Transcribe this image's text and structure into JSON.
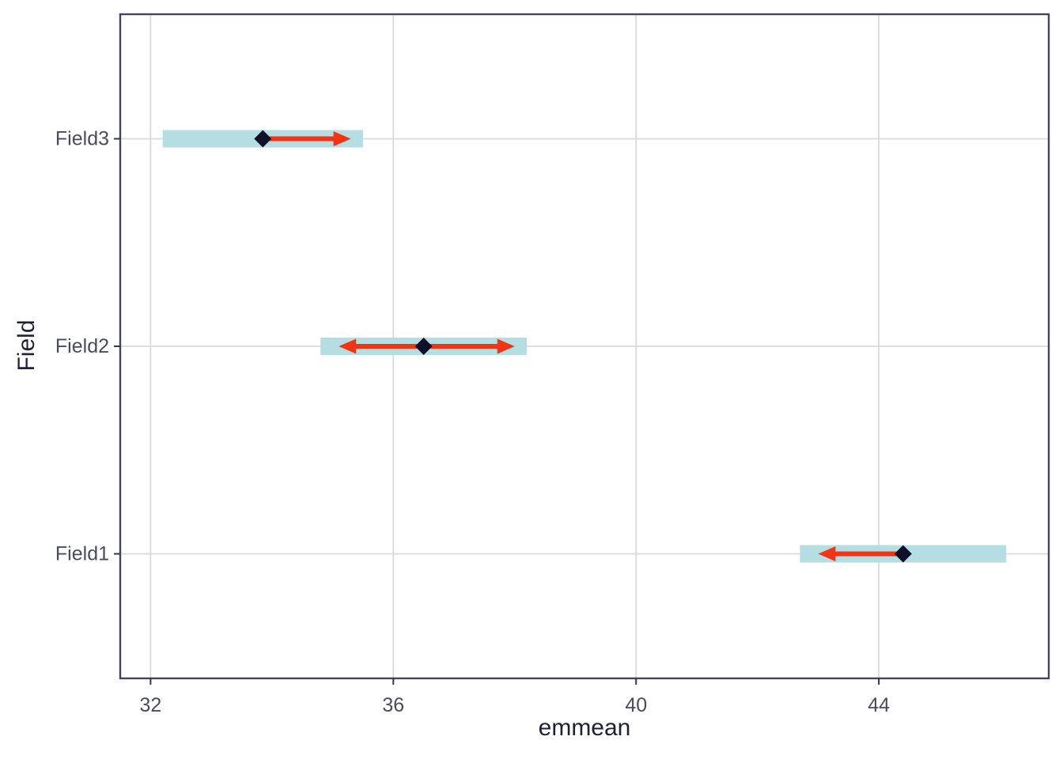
{
  "chart_data": {
    "type": "scatter",
    "variant": "horizontal-confidence-interval-with-comparison-arrows",
    "title": "",
    "xlabel": "emmean",
    "ylabel": "Field",
    "x_ticks": [
      32,
      36,
      40,
      44
    ],
    "x_range": [
      31.5,
      46.8
    ],
    "grid": true,
    "legend": null,
    "categories_top_to_bottom": [
      "Field3",
      "Field2",
      "Field1"
    ],
    "rows": [
      {
        "label": "Field3",
        "emmean": 33.85,
        "ci_low": 32.2,
        "ci_high": 35.5,
        "arrow_left": null,
        "arrow_right": 35.3
      },
      {
        "label": "Field2",
        "emmean": 36.5,
        "ci_low": 34.8,
        "ci_high": 38.2,
        "arrow_left": 35.1,
        "arrow_right": 38.0
      },
      {
        "label": "Field1",
        "emmean": 44.4,
        "ci_low": 42.7,
        "ci_high": 46.1,
        "arrow_left": 43.0,
        "arrow_right": null
      }
    ],
    "colors": {
      "ci_bar": "#b5dee3",
      "point": "#10102a",
      "arrow": "#f23415",
      "grid": "#d9d9de",
      "panel_border": "#44445c",
      "tick_mark": "#34344a",
      "tick_label": "#4b4b60",
      "axis_title": "#1f1f38",
      "background": "#ffffff"
    }
  }
}
